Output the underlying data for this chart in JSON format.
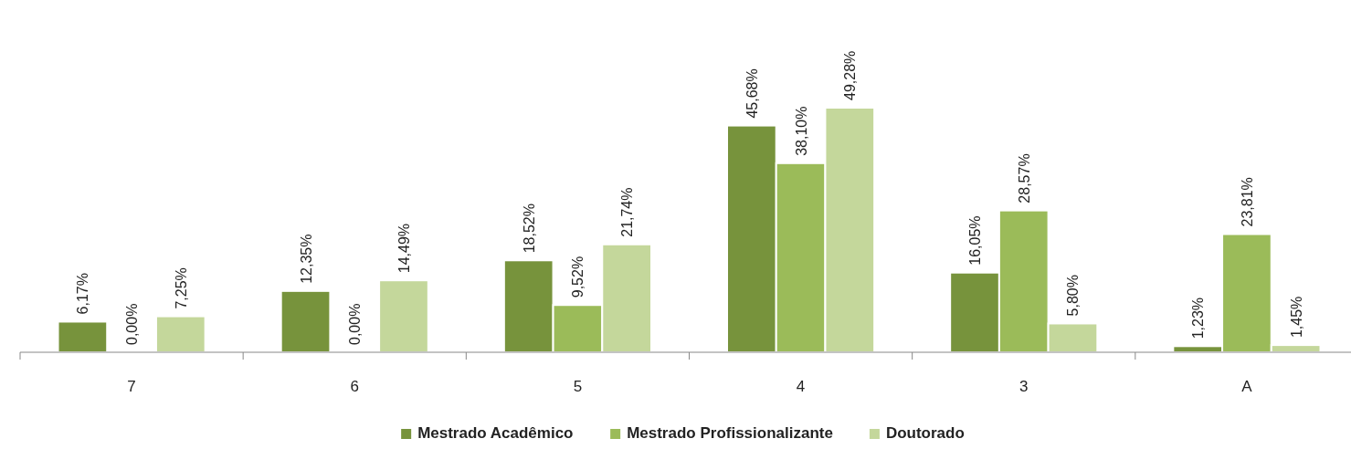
{
  "chart_data": {
    "type": "bar",
    "categories": [
      "7",
      "6",
      "5",
      "4",
      "3",
      "A"
    ],
    "legend": "bottom",
    "series": [
      {
        "name": "Mestrado Acadêmico",
        "color": "#77933c",
        "values": [
          6.17,
          12.35,
          18.52,
          45.68,
          16.05,
          1.23
        ],
        "value_labels": [
          "6,17%",
          "12,35%",
          "18,52%",
          "45,68%",
          "16,05%",
          "1,23%"
        ]
      },
      {
        "name": "Mestrado Profissionalizante",
        "color": "#9bbb59",
        "values": [
          0,
          0,
          9.52,
          38.1,
          28.57,
          23.81
        ],
        "value_labels": [
          "0,00%",
          "0,00%",
          "9,52%",
          "38,10%",
          "28,57%",
          "23,81%"
        ]
      },
      {
        "name": "Doutorado",
        "color": "#c4d79b",
        "values": [
          7.25,
          14.49,
          21.74,
          49.28,
          5.8,
          1.45
        ],
        "value_labels": [
          "7,25%",
          "14,49%",
          "21,74%",
          "49,28%",
          "5,80%",
          "1,45%"
        ]
      }
    ]
  }
}
